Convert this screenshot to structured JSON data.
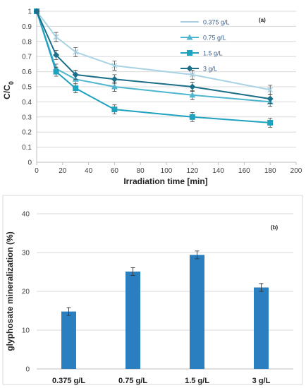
{
  "chart_data": [
    {
      "type": "line",
      "panel_label": "(a)",
      "xlabel": "Irradiation time [min]",
      "ylabel": "C/C",
      "ylabel_sub": "0",
      "xlim": [
        0,
        200
      ],
      "ylim": [
        0,
        1
      ],
      "xticks": [
        "0",
        "20",
        "40",
        "60",
        "80",
        "100",
        "120",
        "140",
        "160",
        "180",
        "200"
      ],
      "yticks": [
        "0",
        "0.1",
        "0.2",
        "0.3",
        "0.4",
        "0.5",
        "0.6",
        "0.7",
        "0.8",
        "0.9",
        "1"
      ],
      "grid": "horizontal",
      "legend_position": "top-right",
      "x": [
        0,
        15,
        30,
        60,
        120,
        180
      ],
      "series": [
        {
          "name": "0.375 g/L",
          "color": "#a9d3e4",
          "marker": "x",
          "values": [
            1.0,
            0.83,
            0.73,
            0.64,
            0.58,
            0.48
          ],
          "errors": [
            0.01,
            0.03,
            0.03,
            0.03,
            0.03,
            0.03
          ]
        },
        {
          "name": "0.75 g/L",
          "color": "#4cb6cf",
          "marker": "triangle",
          "values": [
            1.0,
            0.62,
            0.55,
            0.5,
            0.445,
            0.4
          ],
          "errors": [
            0.01,
            0.03,
            0.03,
            0.03,
            0.03,
            0.03
          ]
        },
        {
          "name": "1.5 g/L",
          "color": "#1fa1bf",
          "marker": "square",
          "values": [
            1.0,
            0.6,
            0.49,
            0.35,
            0.3,
            0.262
          ],
          "errors": [
            0.01,
            0.03,
            0.03,
            0.03,
            0.03,
            0.03
          ]
        },
        {
          "name": "3 g/L",
          "color": "#1c6f88",
          "marker": "diamond",
          "values": [
            1.0,
            0.71,
            0.58,
            0.55,
            0.5,
            0.42
          ],
          "errors": [
            0.01,
            0.03,
            0.03,
            0.03,
            0.03,
            0.03
          ]
        }
      ]
    },
    {
      "type": "bar",
      "panel_label": "(b)",
      "xlabel": "",
      "ylabel": "glyphosate mineralization (%)",
      "ylim": [
        0,
        40
      ],
      "yticks": [
        "0",
        "10",
        "20",
        "30",
        "40"
      ],
      "grid": "horizontal",
      "color": "#2a7fc1",
      "categories": [
        "0.375 g/L",
        "0.75 g/L",
        "1.5 g/L",
        "3 g/L"
      ],
      "values": [
        14.8,
        25.1,
        29.4,
        21.0
      ],
      "errors": [
        1.0,
        1.0,
        1.0,
        1.0
      ]
    }
  ]
}
